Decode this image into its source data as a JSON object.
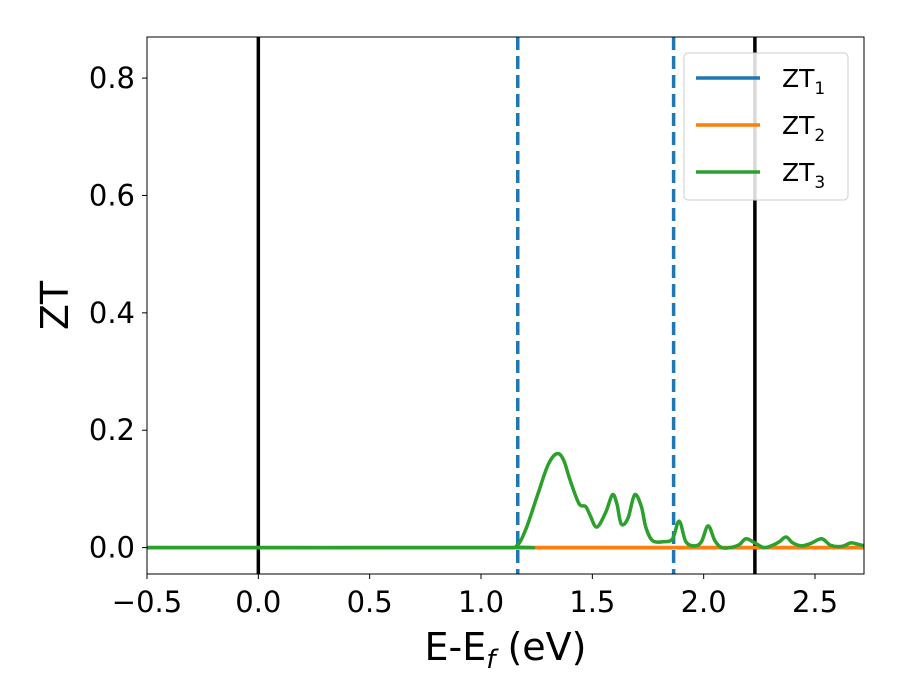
{
  "chart_data": {
    "type": "line",
    "xlabel": {
      "main": "E-E",
      "sub": "f",
      "unit": " (eV)"
    },
    "ylabel": "ZT",
    "xlim": [
      -0.5,
      2.72
    ],
    "ylim": [
      -0.045,
      0.87
    ],
    "xticks": [
      -0.5,
      0.0,
      0.5,
      1.0,
      1.5,
      2.0,
      2.5
    ],
    "xtick_labels": [
      "−0.5",
      "0.0",
      "0.5",
      "1.0",
      "1.5",
      "2.0",
      "2.5"
    ],
    "yticks": [
      0.0,
      0.2,
      0.4,
      0.6,
      0.8
    ],
    "ytick_labels": [
      "0.0",
      "0.2",
      "0.4",
      "0.6",
      "0.8"
    ],
    "grid": false,
    "legend_position": "top-right",
    "series": [
      {
        "name": "ZT",
        "subscript": "1",
        "color": "#1f77b4",
        "x": [
          -0.5,
          2.72
        ],
        "y": [
          0.0,
          0.0
        ]
      },
      {
        "name": "ZT",
        "subscript": "2",
        "color": "#ff7f0e",
        "x": [
          -0.5,
          2.72
        ],
        "y": [
          0.0,
          0.0
        ]
      },
      {
        "name": "ZT",
        "subscript": "3",
        "color": "#2ca02c",
        "x": [
          -0.5,
          1.1,
          1.16,
          1.2,
          1.25,
          1.3,
          1.34,
          1.37,
          1.4,
          1.44,
          1.47,
          1.49,
          1.52,
          1.56,
          1.59,
          1.61,
          1.63,
          1.66,
          1.69,
          1.72,
          1.74,
          1.77,
          1.82,
          1.86,
          1.89,
          1.92,
          1.96,
          1.99,
          2.02,
          2.05,
          2.08,
          2.12,
          2.16,
          2.19,
          2.23,
          2.27,
          2.31,
          2.34,
          2.37,
          2.4,
          2.44,
          2.48,
          2.53,
          2.57,
          2.62,
          2.66,
          2.69,
          2.72
        ],
        "y": [
          0.0,
          0.0,
          0.003,
          0.03,
          0.085,
          0.14,
          0.16,
          0.15,
          0.115,
          0.075,
          0.07,
          0.055,
          0.035,
          0.06,
          0.09,
          0.075,
          0.04,
          0.05,
          0.09,
          0.07,
          0.035,
          0.012,
          0.01,
          0.015,
          0.045,
          0.01,
          0.003,
          0.01,
          0.037,
          0.012,
          0.0,
          0.0,
          0.005,
          0.015,
          0.008,
          0.0,
          0.004,
          0.01,
          0.018,
          0.008,
          0.003,
          0.007,
          0.015,
          0.004,
          0.002,
          0.008,
          0.006,
          0.003
        ]
      }
    ],
    "vlines": [
      {
        "x": 0.0,
        "style": "solid",
        "color": "#000000"
      },
      {
        "x": 2.23,
        "style": "solid",
        "color": "#000000"
      },
      {
        "x": 1.165,
        "style": "dashed",
        "color": "#1f77b4"
      },
      {
        "x": 1.865,
        "style": "dashed",
        "color": "#1f77b4"
      }
    ]
  }
}
